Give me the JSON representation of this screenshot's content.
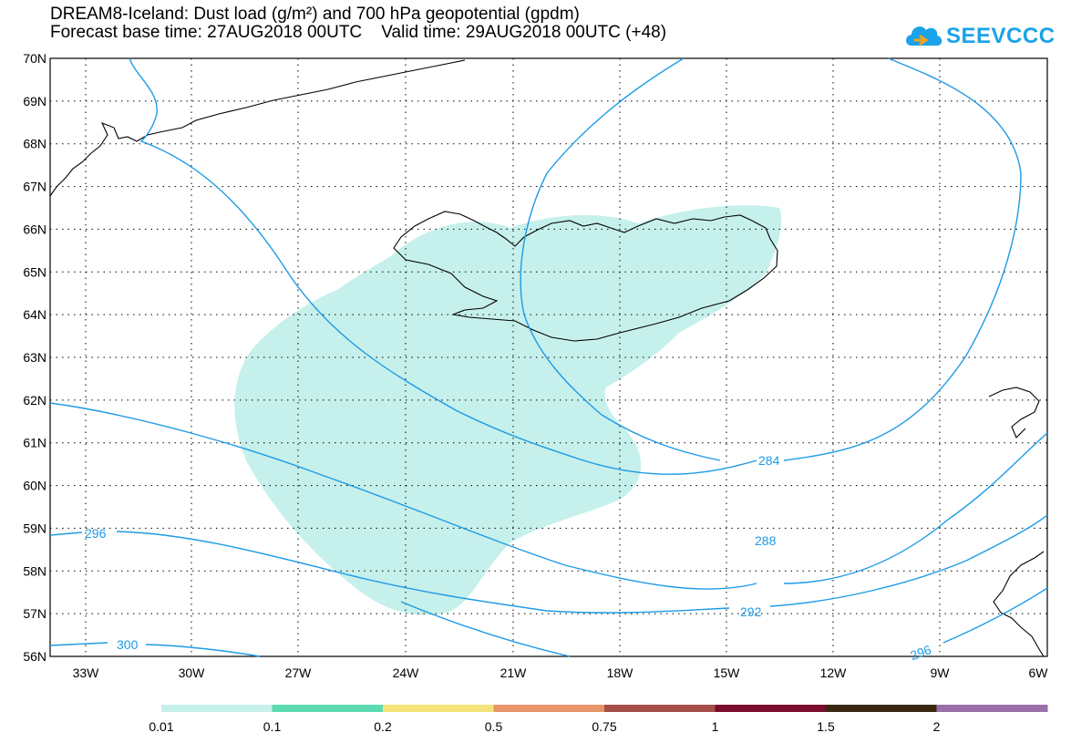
{
  "header": {
    "title_line1": "DREAM8-Iceland: Dust load (g/m²) and 700 hPa geopotential (gpdm)",
    "title_line2": "Forecast base time: 27AUG2018 00UTC    Valid time: 29AUG2018 00UTC (+48)"
  },
  "logo": {
    "text": "SEEVCCC",
    "icon": "cloud-icon",
    "color": "#1aa3e8"
  },
  "map": {
    "lat_labels": [
      "70N",
      "69N",
      "68N",
      "67N",
      "66N",
      "65N",
      "64N",
      "63N",
      "62N",
      "61N",
      "60N",
      "59N",
      "58N",
      "57N",
      "56N"
    ],
    "lon_labels": [
      "33W",
      "30W",
      "27W",
      "24W",
      "21W",
      "18W",
      "15W",
      "12W",
      "9W",
      "6W"
    ],
    "contour_color": "#1e9be6",
    "dust_color": "#c6f0ec",
    "contour_labels": [
      "284",
      "288",
      "292",
      "296",
      "296",
      "300"
    ]
  },
  "legend": {
    "colors": [
      "#c6f0ec",
      "#5ddbb0",
      "#f4e47a",
      "#e8956a",
      "#a45048",
      "#7a0c2c",
      "#3a2812",
      "#9c6fa8"
    ],
    "labels": [
      "0.01",
      "0.1",
      "0.2",
      "0.5",
      "0.75",
      "1",
      "1.5",
      "2"
    ]
  }
}
